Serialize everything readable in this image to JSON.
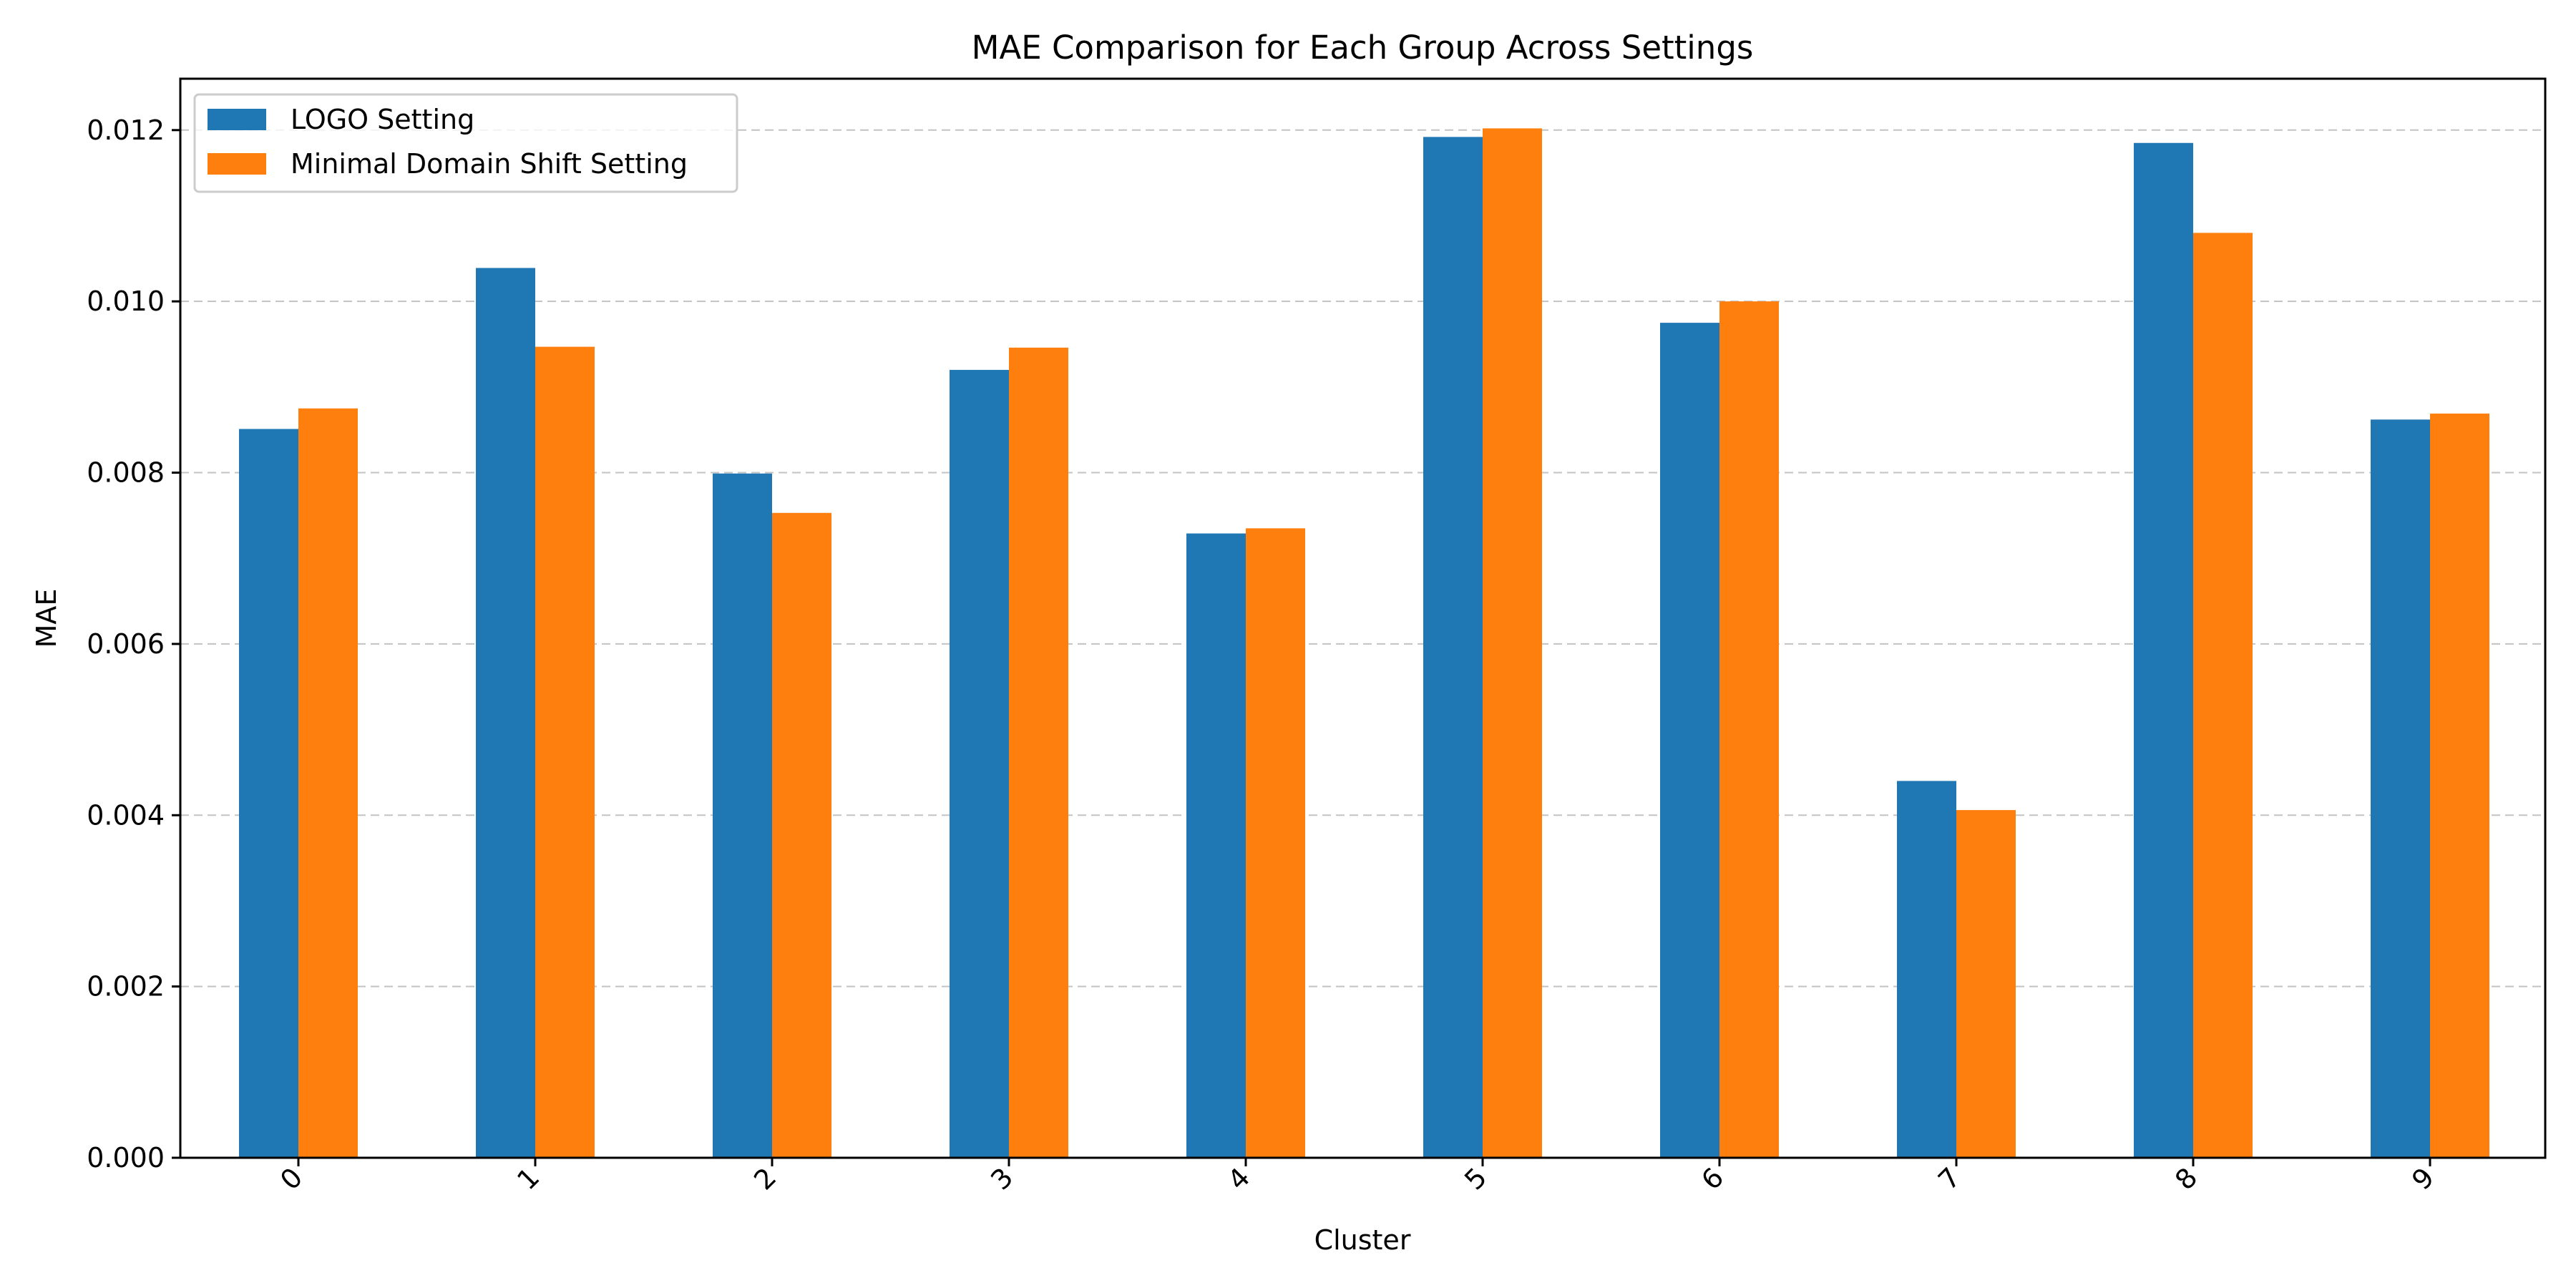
{
  "chart_data": {
    "type": "bar",
    "title": "MAE Comparison for Each Group Across Settings",
    "xlabel": "Cluster",
    "ylabel": "MAE",
    "categories": [
      "0",
      "1",
      "2",
      "3",
      "4",
      "5",
      "6",
      "7",
      "8",
      "9"
    ],
    "series": [
      {
        "name": "LOGO Setting",
        "color": "#1f77b4",
        "values": [
          0.00851,
          0.01039,
          0.00799,
          0.0092,
          0.00729,
          0.01192,
          0.00975,
          0.0044,
          0.01185,
          0.00862
        ]
      },
      {
        "name": "Minimal Domain Shift Setting",
        "color": "#ff7f0e",
        "values": [
          0.00875,
          0.00947,
          0.00753,
          0.00946,
          0.00735,
          0.01202,
          0.01,
          0.00406,
          0.0108,
          0.00869
        ]
      }
    ],
    "ylim": [
      0,
      0.0126
    ],
    "yticks": [
      "0.000",
      "0.002",
      "0.004",
      "0.006",
      "0.008",
      "0.010",
      "0.012"
    ],
    "ytick_values": [
      0,
      0.002,
      0.004,
      0.006,
      0.008,
      0.01,
      0.012
    ],
    "grid": "y-dashed",
    "legend_position": "top-left",
    "xtick_rotation": 45
  }
}
